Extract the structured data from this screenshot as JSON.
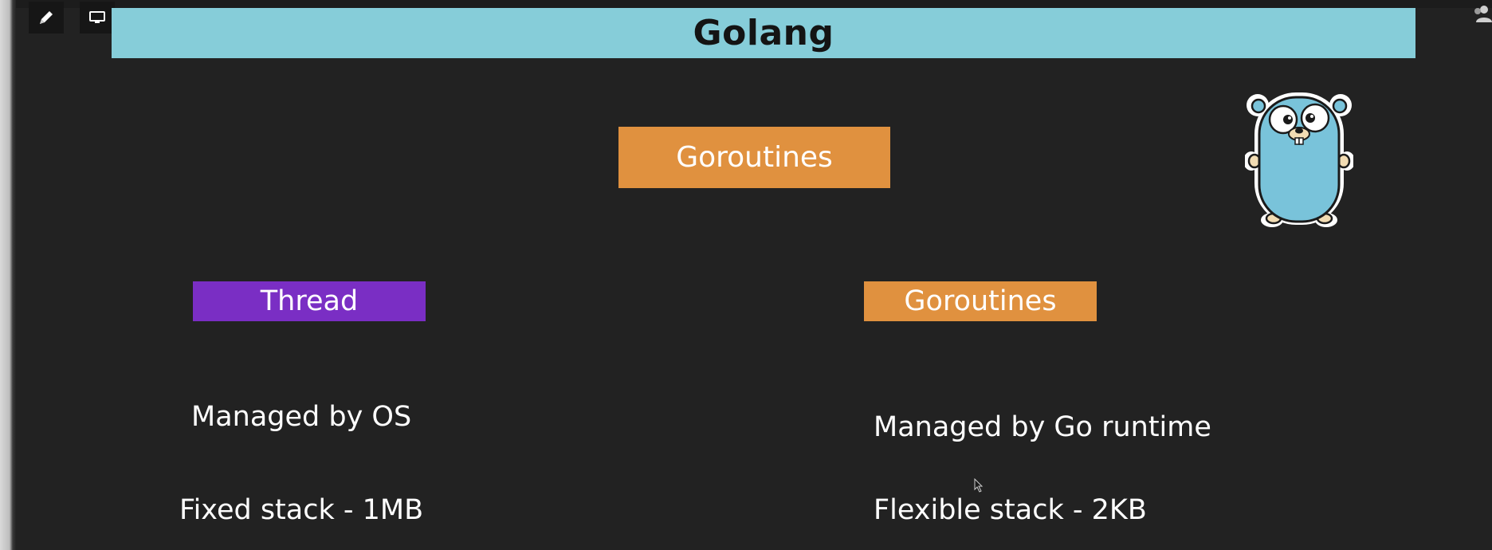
{
  "slide": {
    "title": "Golang",
    "main_box": "Goroutines",
    "left_header": "Thread",
    "right_header": "Goroutines",
    "left_line1": "Managed by OS",
    "right_line1": "Managed by Go runtime",
    "left_line2": "Fixed stack - 1MB",
    "right_line2": "Flexible stack - 2KB"
  },
  "colors": {
    "background": "#222222",
    "title_bar": "#86cdd9",
    "orange_box": "#e0913f",
    "purple_box": "#7a2ec4",
    "gopher_body": "#79c3da"
  },
  "icons": {
    "toolbar_left": "pen-icon",
    "toolbar_right": "monitor-icon",
    "top_right": "people-icon",
    "mascot": "gopher-icon",
    "pointer": "mouse-cursor-icon"
  }
}
